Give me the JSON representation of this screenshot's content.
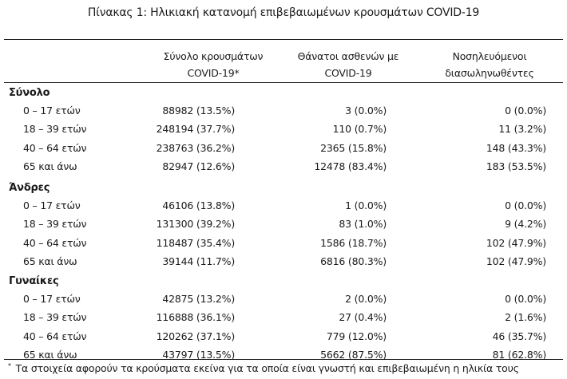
{
  "title": "Πίνακας 1: Ηλικιακή κατανομή επιβεβαιωμένων κρουσμάτων COVID-19",
  "headers": {
    "col1_line1": "Σύνολο κρουσμάτων",
    "col1_line2": "COVID-19*",
    "col2_line1": "Θάνατοι ασθενών με",
    "col2_line2": "COVID-19",
    "col3_line1": "Νοσηλευόμενοι",
    "col3_line2": "διασωληνωθέντες"
  },
  "sections": [
    {
      "title": "Σύνολο",
      "rows": [
        {
          "label": "0 – 17 ετών",
          "cases": "88982 (13.5%)",
          "deaths": "3 (0.0%)",
          "icu": "0 (0.0%)"
        },
        {
          "label": "18 – 39 ετών",
          "cases": "248194 (37.7%)",
          "deaths": "110 (0.7%)",
          "icu": "11 (3.2%)"
        },
        {
          "label": "40 – 64 ετών",
          "cases": "238763 (36.2%)",
          "deaths": "2365 (15.8%)",
          "icu": "148 (43.3%)"
        },
        {
          "label": "65 και άνω",
          "cases": "82947 (12.6%)",
          "deaths": "12478 (83.4%)",
          "icu": "183 (53.5%)"
        }
      ]
    },
    {
      "title": "Άνδρες",
      "rows": [
        {
          "label": "0 – 17 ετών",
          "cases": "46106 (13.8%)",
          "deaths": "1 (0.0%)",
          "icu": "0 (0.0%)"
        },
        {
          "label": "18 – 39 ετών",
          "cases": "131300 (39.2%)",
          "deaths": "83 (1.0%)",
          "icu": "9 (4.2%)"
        },
        {
          "label": "40 – 64 ετών",
          "cases": "118487 (35.4%)",
          "deaths": "1586 (18.7%)",
          "icu": "102 (47.9%)"
        },
        {
          "label": "65 και άνω",
          "cases": "39144 (11.7%)",
          "deaths": "6816 (80.3%)",
          "icu": "102 (47.9%)"
        }
      ]
    },
    {
      "title": "Γυναίκες",
      "rows": [
        {
          "label": "0 – 17 ετών",
          "cases": "42875 (13.2%)",
          "deaths": "2 (0.0%)",
          "icu": "0 (0.0%)"
        },
        {
          "label": "18 – 39 ετών",
          "cases": "116888 (36.1%)",
          "deaths": "27 (0.4%)",
          "icu": "2 (1.6%)"
        },
        {
          "label": "40 – 64 ετών",
          "cases": "120262 (37.1%)",
          "deaths": "779 (12.0%)",
          "icu": "46 (35.7%)"
        },
        {
          "label": "65 και άνω",
          "cases": "43797 (13.5%)",
          "deaths": "5662 (87.5%)",
          "icu": "81 (62.8%)"
        }
      ]
    }
  ],
  "footnote": {
    "marker": "*",
    "text": "Τα στοιχεία αφορούν τα κρούσματα εκείνα για τα οποία είναι γνωστή και επιβεβαιωμένη η ηλικία τους"
  }
}
